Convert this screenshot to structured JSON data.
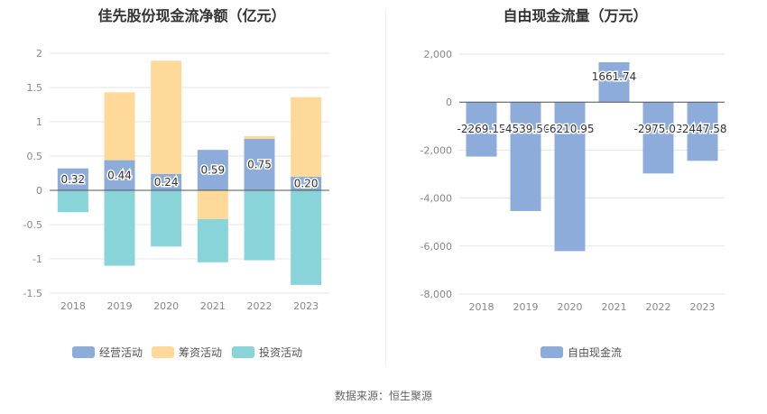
{
  "footer": {
    "source": "数据来源：恒生聚源"
  },
  "colors": {
    "operating": "#8eacd9",
    "financing": "#ffd99a",
    "investing": "#88d4d9",
    "free_cash_flow": "#8eacd9",
    "grid": "#e6e6e6",
    "axis_text": "#888888"
  },
  "chart_data": [
    {
      "type": "bar",
      "stacked": true,
      "title": "佳先股份现金流净额（亿元）",
      "categories": [
        "2018",
        "2019",
        "2020",
        "2021",
        "2022",
        "2023"
      ],
      "ylim": [
        -1.5,
        2
      ],
      "yticks": [
        2,
        1.5,
        1,
        0.5,
        0,
        -0.5,
        -1,
        -1.5
      ],
      "ytick_labels": [
        "2",
        "1.5",
        "1",
        "0.5",
        "0",
        "-0.5",
        "-1",
        "-1.5"
      ],
      "grid": true,
      "legend": "bottom",
      "series": [
        {
          "name": "经营活动",
          "values": [
            0.32,
            0.44,
            0.24,
            0.59,
            0.75,
            0.2
          ],
          "labels": [
            "0.32",
            "0.44",
            "0.24",
            "0.59",
            "0.75",
            "0.20"
          ]
        },
        {
          "name": "筹资活动",
          "values": [
            0,
            0.99,
            1.65,
            -0.42,
            0.04,
            1.16
          ]
        },
        {
          "name": "投资活动",
          "values": [
            -0.32,
            -1.1,
            -0.82,
            -0.63,
            -1.02,
            -1.38
          ]
        }
      ]
    },
    {
      "type": "bar",
      "title": "自由现金流量（万元）",
      "categories": [
        "2018",
        "2019",
        "2020",
        "2021",
        "2022",
        "2023"
      ],
      "ylim": [
        -8000,
        2000
      ],
      "yticks": [
        2000,
        0,
        -2000,
        -4000,
        -6000,
        -8000
      ],
      "ytick_labels": [
        "2,000",
        "0",
        "-2,000",
        "-4,000",
        "-6,000",
        "-8,000"
      ],
      "grid": true,
      "legend": "bottom",
      "series": [
        {
          "name": "自由现金流",
          "values": [
            -2269.15,
            -4539.56,
            -6210.95,
            1661.74,
            -2975.03,
            -2447.58
          ],
          "labels": [
            "-2269.15",
            "-4539.56",
            "-6210.95",
            "1661.74",
            "-2975.03",
            "-2447.58"
          ]
        }
      ]
    }
  ]
}
